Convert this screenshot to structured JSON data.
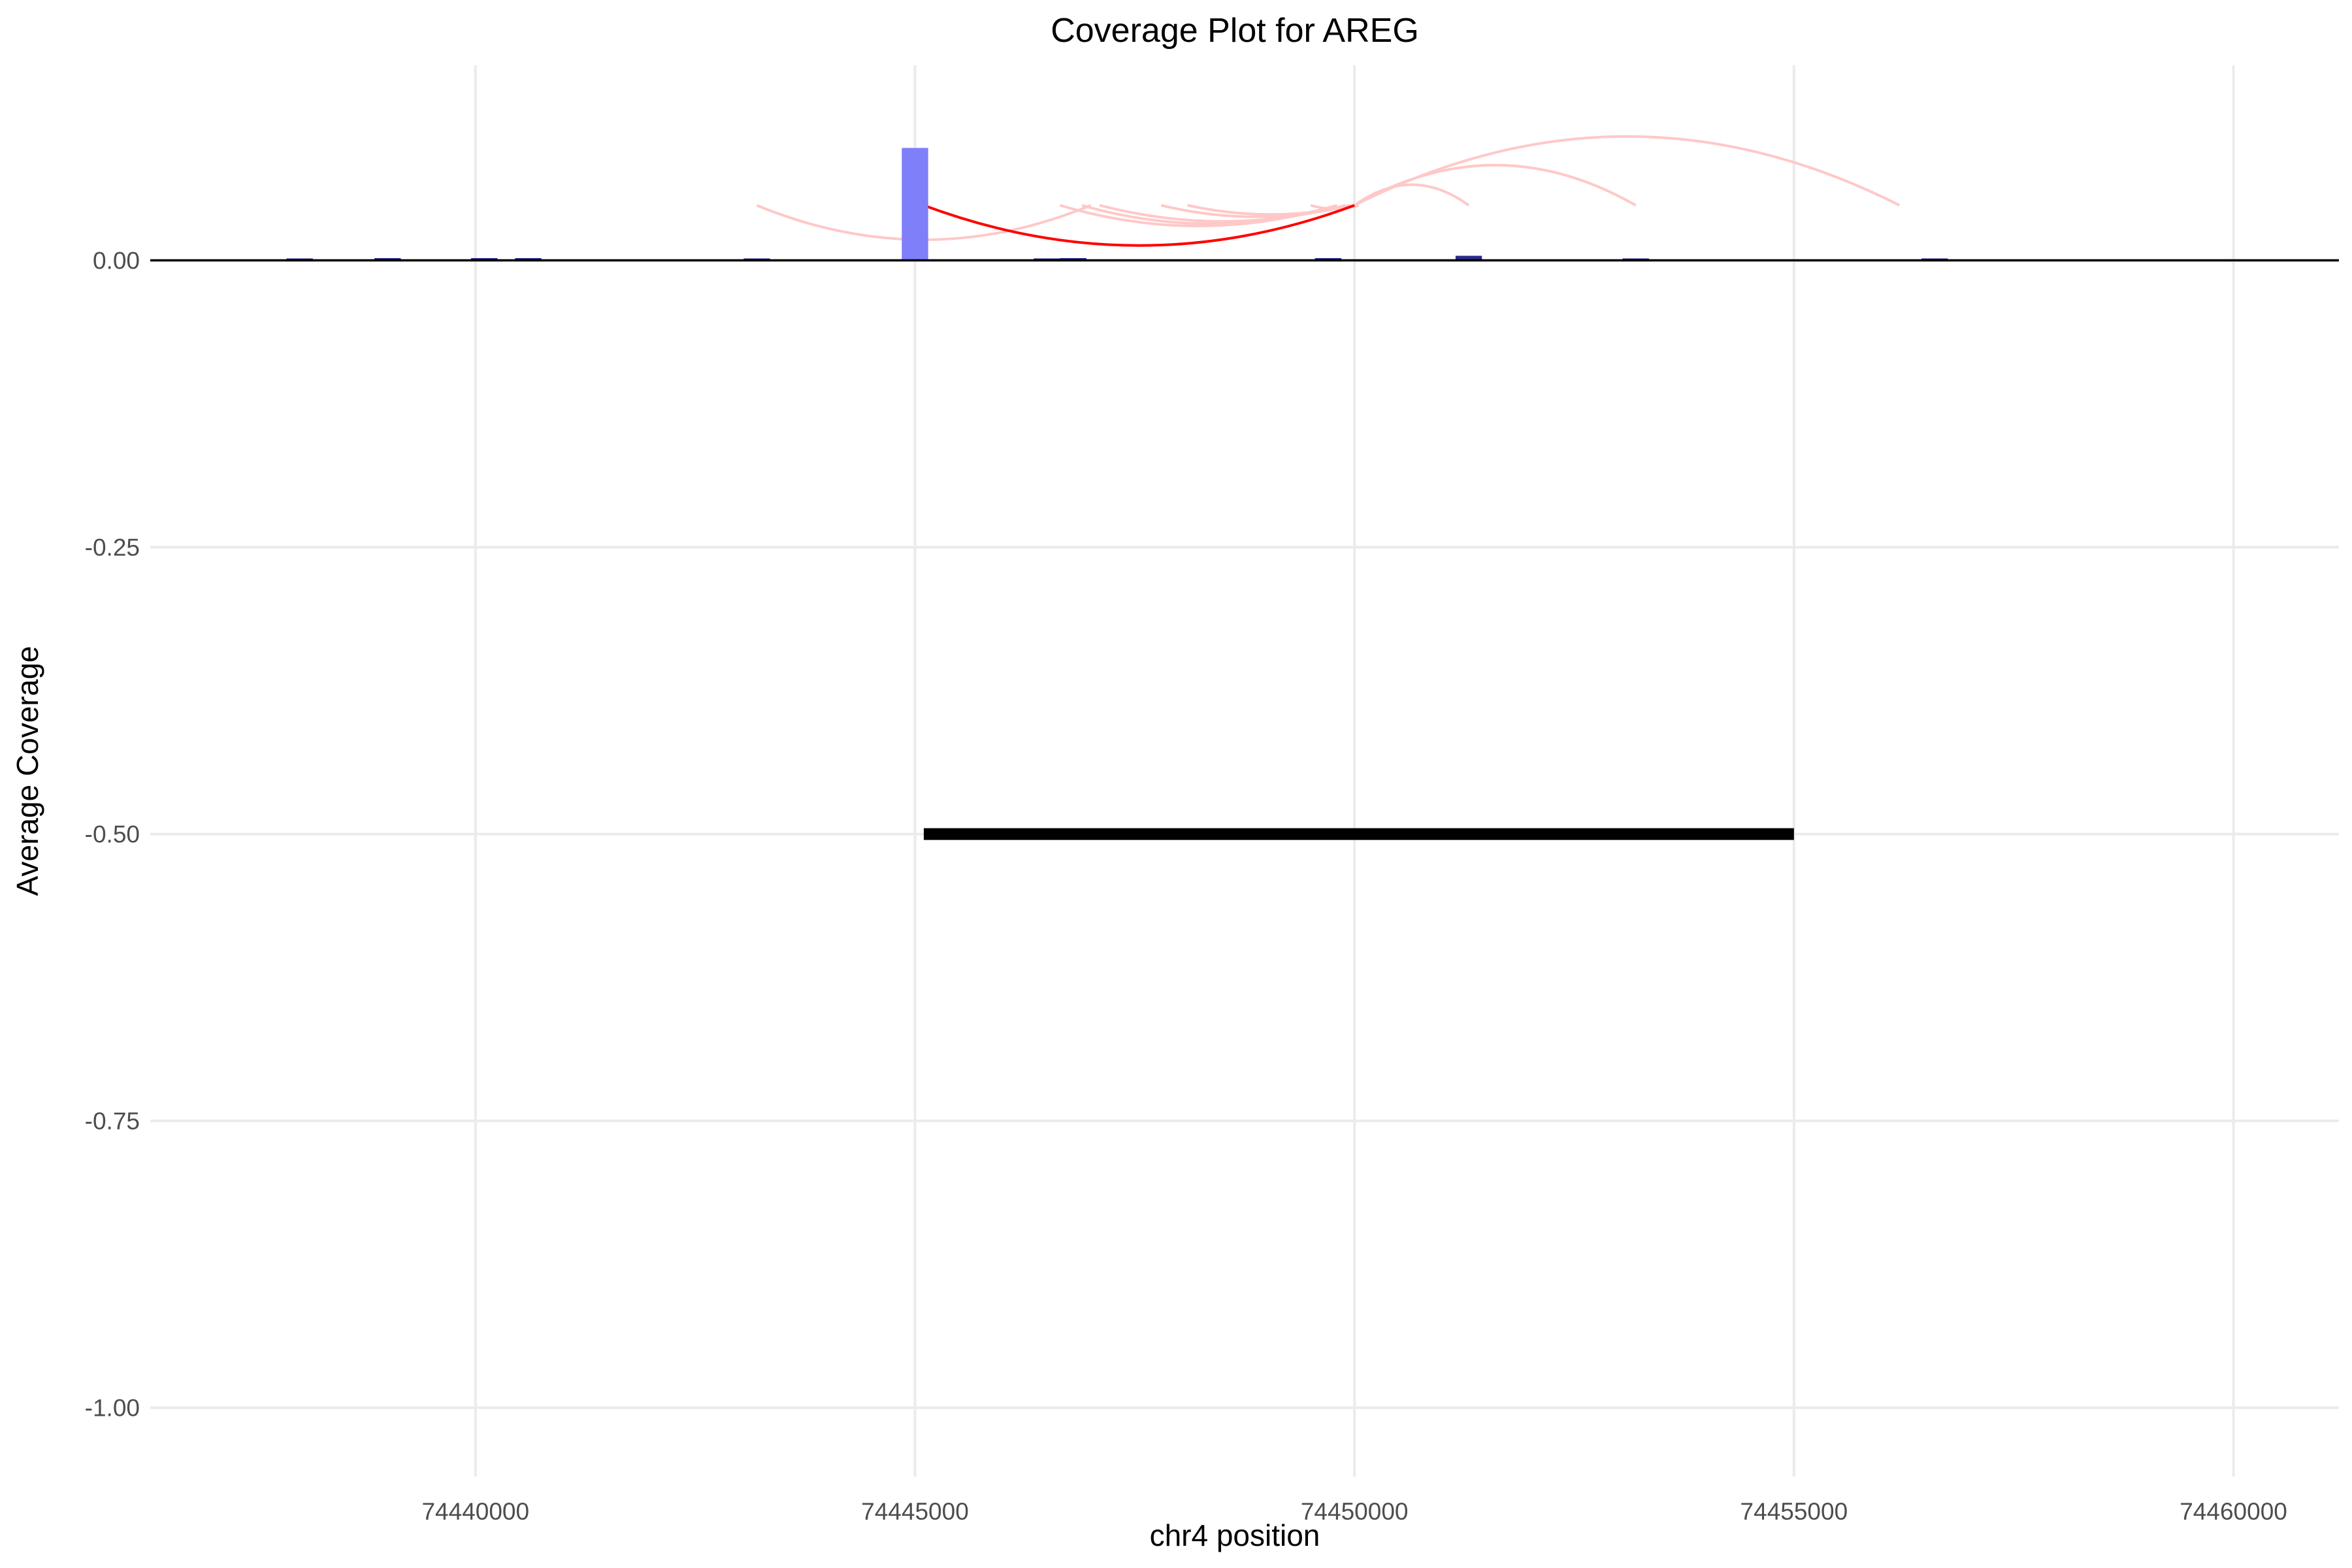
{
  "chart_data": {
    "type": "bar",
    "title": "Coverage Plot for AREG",
    "xlabel": "chr4 position",
    "ylabel": "Average Coverage",
    "xlim": [
      74436300,
      74461200
    ],
    "ylim": [
      -1.06,
      0.17
    ],
    "x_ticks": [
      74440000,
      74445000,
      74450000,
      74455000,
      74460000
    ],
    "x_tick_labels": [
      "74440000",
      "74445000",
      "74450000",
      "74455000",
      "74460000"
    ],
    "y_ticks": [
      0.0,
      -0.25,
      -0.5,
      -0.75,
      -1.0
    ],
    "y_tick_labels": [
      "0.00",
      "-0.25",
      "-0.50",
      "-0.75",
      "-1.00"
    ],
    "grid": true,
    "legend": "none",
    "colors": {
      "bar": "#7f7ffa",
      "bar_small": "#2a2a8a",
      "junction_main": "#ff0000",
      "junction_faint": "#ffc8c8",
      "zero_line": "#000000",
      "gene": "#000000"
    },
    "coverage_bars": {
      "bin_width": 300,
      "x": [
        74438000,
        74439000,
        74440100,
        74440600,
        74443200,
        74445000,
        74446500,
        74446800,
        74449700,
        74451300,
        74453200,
        74456600
      ],
      "values": [
        0.0015,
        0.002,
        0.002,
        0.002,
        0.001,
        0.098,
        0.001,
        0.002,
        0.002,
        0.004,
        0.001,
        0.001
      ]
    },
    "gene_segment": {
      "start": 74445100,
      "end": 74455000,
      "y": -0.5
    },
    "junctions": [
      {
        "start": 74445100,
        "end": 74450000,
        "y": 0.048,
        "depth": -0.035,
        "highlight": true
      },
      {
        "start": 74443200,
        "end": 74447000,
        "y": 0.048,
        "depth": -0.03,
        "highlight": false
      },
      {
        "start": 74446650,
        "end": 74449800,
        "y": 0.048,
        "depth": -0.018,
        "highlight": false
      },
      {
        "start": 74446900,
        "end": 74449800,
        "y": 0.048,
        "depth": -0.016,
        "highlight": false
      },
      {
        "start": 74447100,
        "end": 74449900,
        "y": 0.048,
        "depth": -0.014,
        "highlight": false
      },
      {
        "start": 74447800,
        "end": 74449950,
        "y": 0.048,
        "depth": -0.01,
        "highlight": false
      },
      {
        "start": 74448100,
        "end": 74450000,
        "y": 0.048,
        "depth": -0.008,
        "highlight": false
      },
      {
        "start": 74449500,
        "end": 74450050,
        "y": 0.048,
        "depth": -0.003,
        "highlight": false
      },
      {
        "start": 74450000,
        "end": 74451300,
        "y": 0.048,
        "depth": 0.018,
        "highlight": false
      },
      {
        "start": 74450000,
        "end": 74453200,
        "y": 0.048,
        "depth": 0.035,
        "highlight": false
      },
      {
        "start": 74450000,
        "end": 74456200,
        "y": 0.048,
        "depth": 0.06,
        "highlight": false
      }
    ]
  }
}
